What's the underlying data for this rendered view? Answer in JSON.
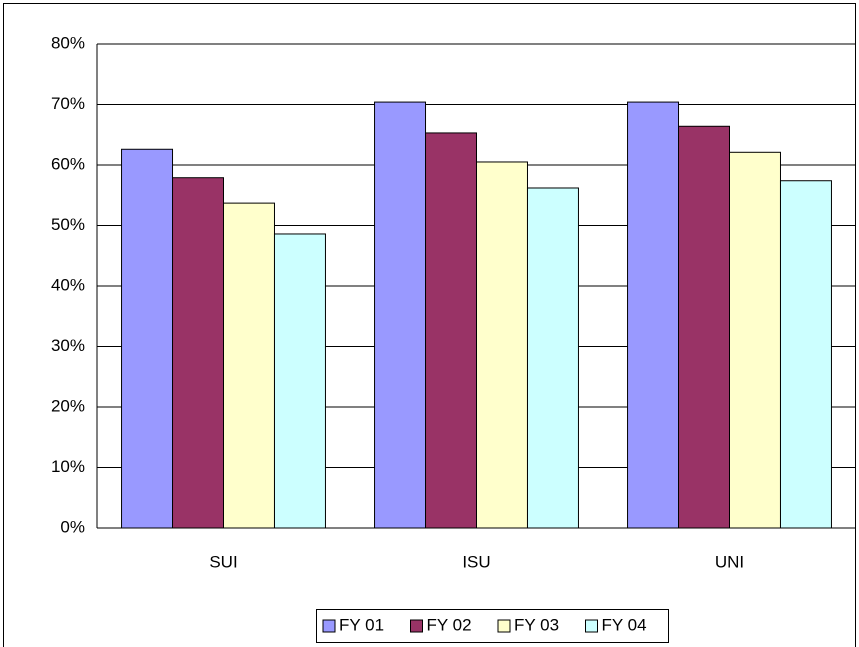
{
  "chart_data": {
    "type": "bar",
    "categories": [
      "SUI",
      "ISU",
      "UNI"
    ],
    "series": [
      {
        "name": "FY 01",
        "color": "#9999ff",
        "values": [
          62.6,
          70.4,
          70.4
        ]
      },
      {
        "name": "FY 02",
        "color": "#993366",
        "values": [
          57.9,
          65.3,
          66.4
        ]
      },
      {
        "name": "FY 03",
        "color": "#ffffcc",
        "values": [
          53.7,
          60.5,
          62.1
        ]
      },
      {
        "name": "FY 04",
        "color": "#ccffff",
        "values": [
          48.6,
          56.2,
          57.4
        ]
      }
    ],
    "ylim": [
      0,
      80
    ],
    "yticks": [
      {
        "value": 0,
        "label": "0%"
      },
      {
        "value": 10,
        "label": "10%"
      },
      {
        "value": 20,
        "label": "20%"
      },
      {
        "value": 30,
        "label": "30%"
      },
      {
        "value": 40,
        "label": "40%"
      },
      {
        "value": 50,
        "label": "50%"
      },
      {
        "value": 60,
        "label": "60%"
      },
      {
        "value": 70,
        "label": "70%"
      },
      {
        "value": 80,
        "label": "80%"
      }
    ],
    "grid": true,
    "legend": "bottom"
  }
}
